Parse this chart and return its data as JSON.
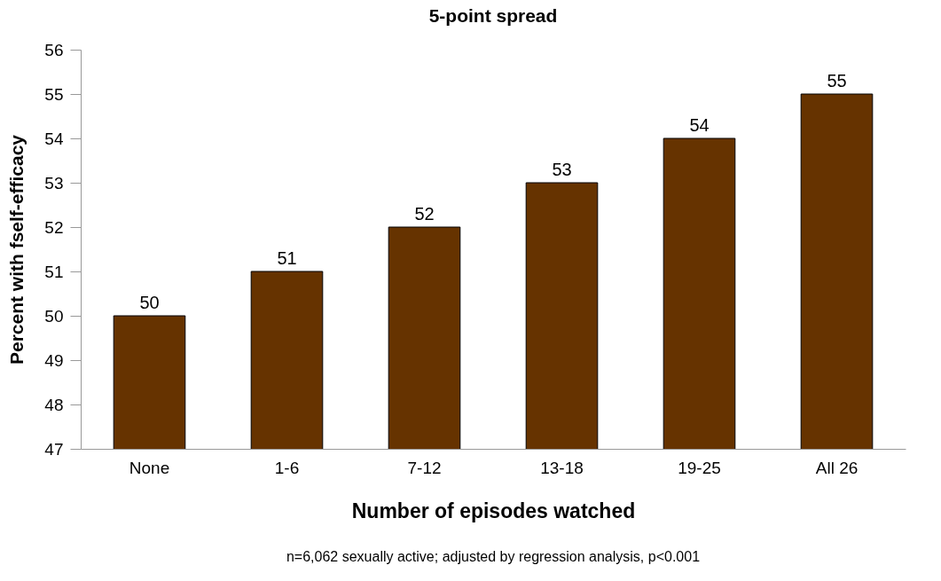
{
  "chart_data": {
    "type": "bar",
    "title": "5-point spread",
    "xlabel": "Number of episodes watched",
    "ylabel": "Percent with fself-efficacy",
    "categories": [
      "None",
      "1-6",
      "7-12",
      "13-18",
      "19-25",
      "All 26"
    ],
    "values": [
      50,
      51,
      52,
      53,
      54,
      55
    ],
    "color": "#663300",
    "ylim": [
      47,
      56
    ],
    "yticks": [
      47,
      48,
      49,
      50,
      51,
      52,
      53,
      54,
      55,
      56
    ],
    "data_labels": true,
    "annotations": [
      "n=6,062 sexually active; adjusted by regression analysis, p<0.001"
    ]
  }
}
